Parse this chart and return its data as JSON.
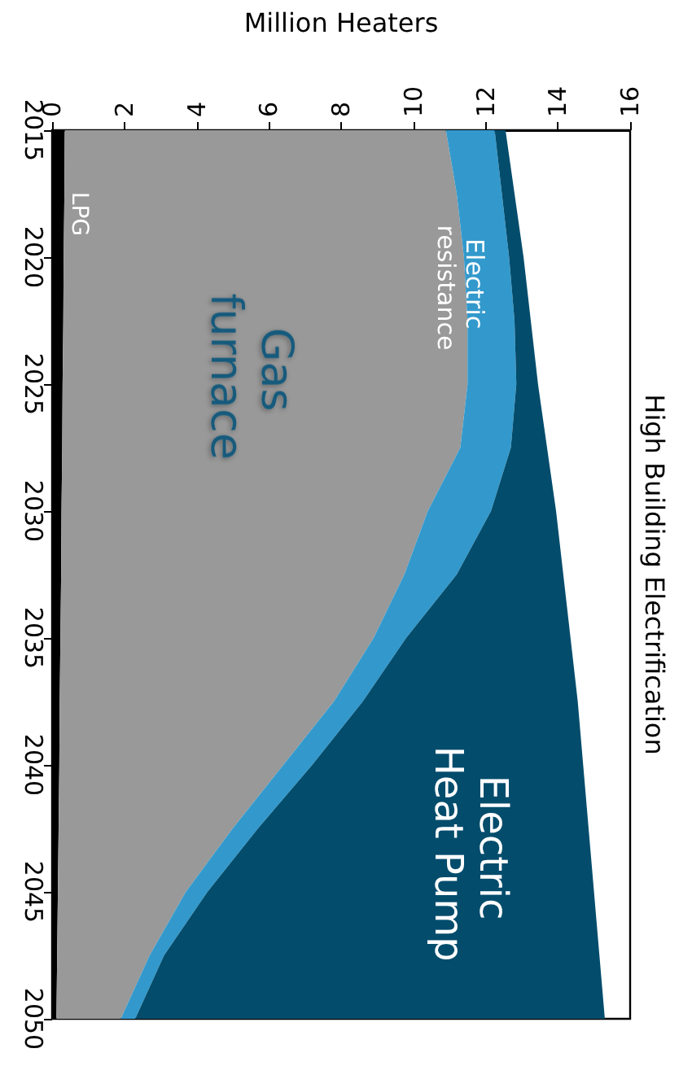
{
  "chart_data": {
    "type": "area",
    "title": "High Building Electrification",
    "xlabel": "Million Heaters",
    "stacked": true,
    "orientation": "horizontal",
    "legend": false,
    "grid": false,
    "x": [
      2015,
      2017.5,
      2020,
      2022.5,
      2025,
      2027.5,
      2030,
      2032.5,
      2035,
      2037.5,
      2040,
      2042.5,
      2045,
      2047.5,
      2050
    ],
    "ylim": [
      2050,
      2015
    ],
    "yticks": [
      2015,
      2020,
      2025,
      2030,
      2035,
      2040,
      2045,
      2050
    ],
    "xlim": [
      0,
      16
    ],
    "xticks": [
      0,
      2,
      4,
      6,
      8,
      10,
      12,
      14,
      16
    ],
    "series": [
      {
        "name": "LPG",
        "color": "#000000",
        "values": [
          0.35,
          0.34,
          0.32,
          0.31,
          0.29,
          0.28,
          0.26,
          0.25,
          0.23,
          0.21,
          0.2,
          0.18,
          0.16,
          0.14,
          0.12
        ]
      },
      {
        "name": "Gas furnace",
        "color": "#999999",
        "values": [
          10.55,
          10.86,
          11.08,
          11.19,
          11.21,
          11.02,
          10.14,
          9.5,
          8.67,
          7.59,
          6.2,
          4.82,
          3.54,
          2.56,
          1.78
        ]
      },
      {
        "name": "Electric resistance",
        "color": "#3399cc",
        "values": [
          1.35,
          1.25,
          1.25,
          1.3,
          1.35,
          1.4,
          1.75,
          1.45,
          0.9,
          0.8,
          0.8,
          0.7,
          0.6,
          0.4,
          0.4
        ]
      },
      {
        "name": "Electric Heat Pump",
        "color": "#034c6c",
        "values": [
          0.3,
          0.35,
          0.4,
          0.45,
          0.6,
          1.0,
          1.8,
          2.95,
          4.55,
          5.95,
          7.5,
          9.15,
          10.7,
          12.05,
          13.0
        ]
      }
    ]
  }
}
